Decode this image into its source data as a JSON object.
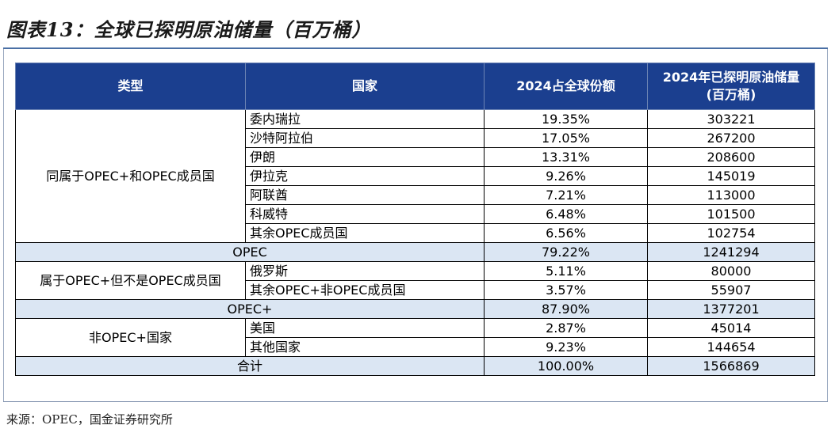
{
  "title": "图表13：全球已探明原油储量（百万桶）",
  "headers": {
    "type": "类型",
    "country": "国家",
    "share": "2024占全球份额",
    "reserve_l1": "2024年已探明原油储量",
    "reserve_l2": "(百万桶)"
  },
  "groups": {
    "opec_members": {
      "category": "同属于OPEC+和OPEC成员国",
      "rows": [
        {
          "country": "委内瑞拉",
          "share": "19.35%",
          "reserve": "303221"
        },
        {
          "country": "沙特阿拉伯",
          "share": "17.05%",
          "reserve": "267200"
        },
        {
          "country": "伊朗",
          "share": "13.31%",
          "reserve": "208600"
        },
        {
          "country": "伊拉克",
          "share": "9.26%",
          "reserve": "145019"
        },
        {
          "country": "阿联酋",
          "share": "7.21%",
          "reserve": "113000"
        },
        {
          "country": "科威特",
          "share": "6.48%",
          "reserve": "101500"
        },
        {
          "country": "其余OPEC成员国",
          "share": "6.56%",
          "reserve": "102754"
        }
      ],
      "subtotal": {
        "label": "OPEC",
        "share": "79.22%",
        "reserve": "1241294"
      }
    },
    "opec_plus_non_opec": {
      "category": "属于OPEC+但不是OPEC成员国",
      "rows": [
        {
          "country": "俄罗斯",
          "share": "5.11%",
          "reserve": "80000"
        },
        {
          "country": "其余OPEC+非OPEC成员国",
          "share": "3.57%",
          "reserve": "55907"
        }
      ],
      "subtotal": {
        "label": "OPEC+",
        "share": "87.90%",
        "reserve": "1377201"
      }
    },
    "non_opec_plus": {
      "category": "非OPEC+国家",
      "rows": [
        {
          "country": "美国",
          "share": "2.87%",
          "reserve": "45014"
        },
        {
          "country": "其他国家",
          "share": "9.23%",
          "reserve": "144654"
        }
      ],
      "total": {
        "label": "合计",
        "share": "100.00%",
        "reserve": "1566869"
      }
    }
  },
  "source": "来源：OPEC，国金证券研究所"
}
